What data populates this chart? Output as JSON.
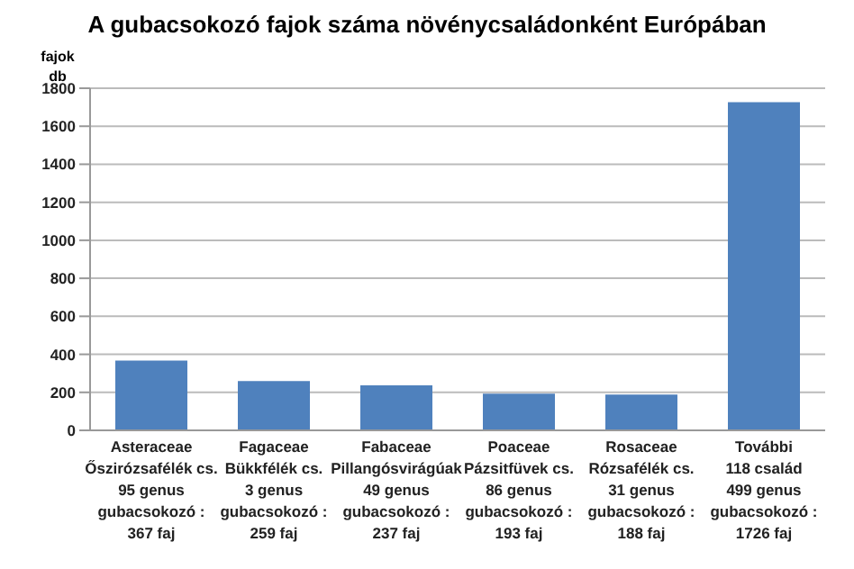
{
  "chart_data": {
    "type": "bar",
    "title": "A gubacsokozó fajok száma növénycsaládonként Európában",
    "ylabel": "fajok\ndb",
    "categories": [
      "Asteraceae\nŐszirózsafélék cs.\n95 genus\ngubacsokozó :\n367 faj",
      "Fagaceae\nBükkfélék cs.\n3 genus\ngubacsokozó :\n259 faj",
      "Fabaceae\nPillangósvirágúak\n49 genus\ngubacsokozó :\n237 faj",
      "Poaceae\nPázsitfüvek cs.\n86 genus\ngubacsokozó :\n193 faj",
      "Rosaceae\nRózsafélék cs.\n31 genus\ngubacsokozó :\n188 faj",
      "További\n118 család\n499 genus\ngubacsokozó :\n1726 faj"
    ],
    "values": [
      367,
      259,
      237,
      193,
      188,
      1726
    ],
    "color": "#4f81bd",
    "ylim": [
      0,
      1800
    ],
    "yticks": [
      0,
      200,
      400,
      600,
      800,
      1000,
      1200,
      1400,
      1600,
      1800
    ],
    "grid": "y"
  }
}
